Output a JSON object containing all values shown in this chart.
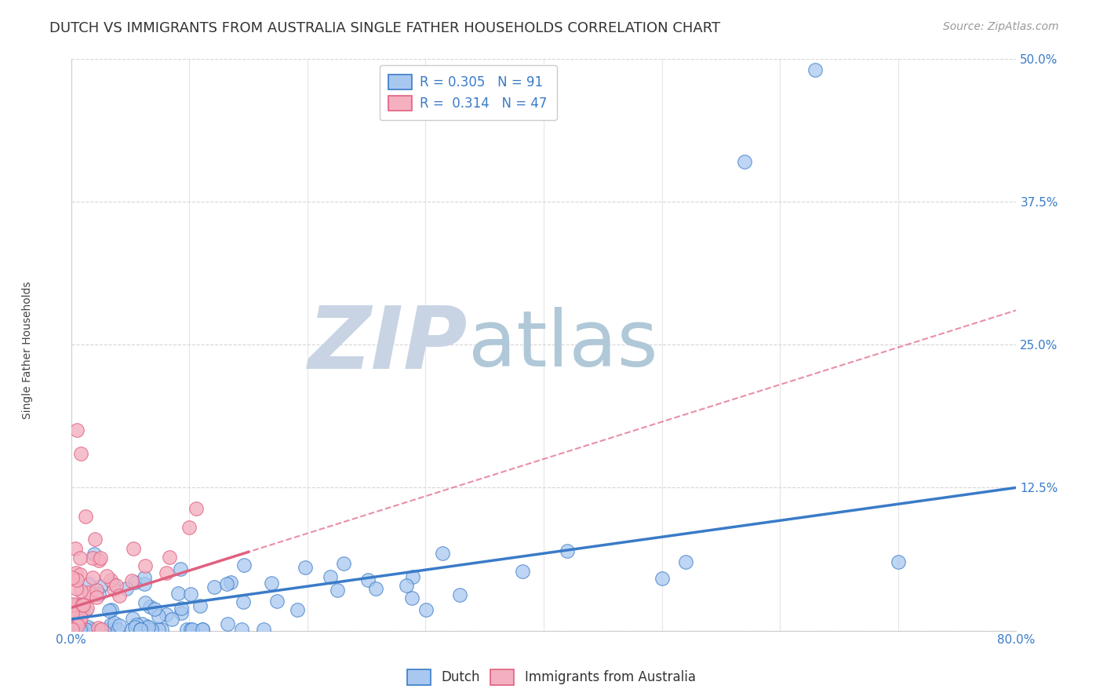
{
  "title": "DUTCH VS IMMIGRANTS FROM AUSTRALIA SINGLE FATHER HOUSEHOLDS CORRELATION CHART",
  "source": "Source: ZipAtlas.com",
  "ylabel": "Single Father Households",
  "xlim": [
    0.0,
    0.8
  ],
  "ylim": [
    0.0,
    0.5
  ],
  "yticks": [
    0.0,
    0.125,
    0.25,
    0.375,
    0.5
  ],
  "ytick_labels": [
    "",
    "12.5%",
    "25.0%",
    "37.5%",
    "50.0%"
  ],
  "xticks": [
    0.0,
    0.1,
    0.2,
    0.3,
    0.4,
    0.5,
    0.6,
    0.7,
    0.8
  ],
  "dutch_R": 0.305,
  "dutch_N": 91,
  "australia_R": 0.314,
  "australia_N": 47,
  "dutch_color": "#a8c8f0",
  "dutch_line_color": "#3a7bc8",
  "australia_color": "#f4b0c0",
  "australia_line_color": "#e06080",
  "background_color": "#ffffff",
  "grid_color": "#cccccc",
  "watermark_zip_color": "#c8d4e4",
  "watermark_atlas_color": "#b0c8d8",
  "title_fontsize": 13,
  "source_fontsize": 10,
  "legend_fontsize": 12,
  "axis_label_fontsize": 10,
  "tick_fontsize": 11
}
